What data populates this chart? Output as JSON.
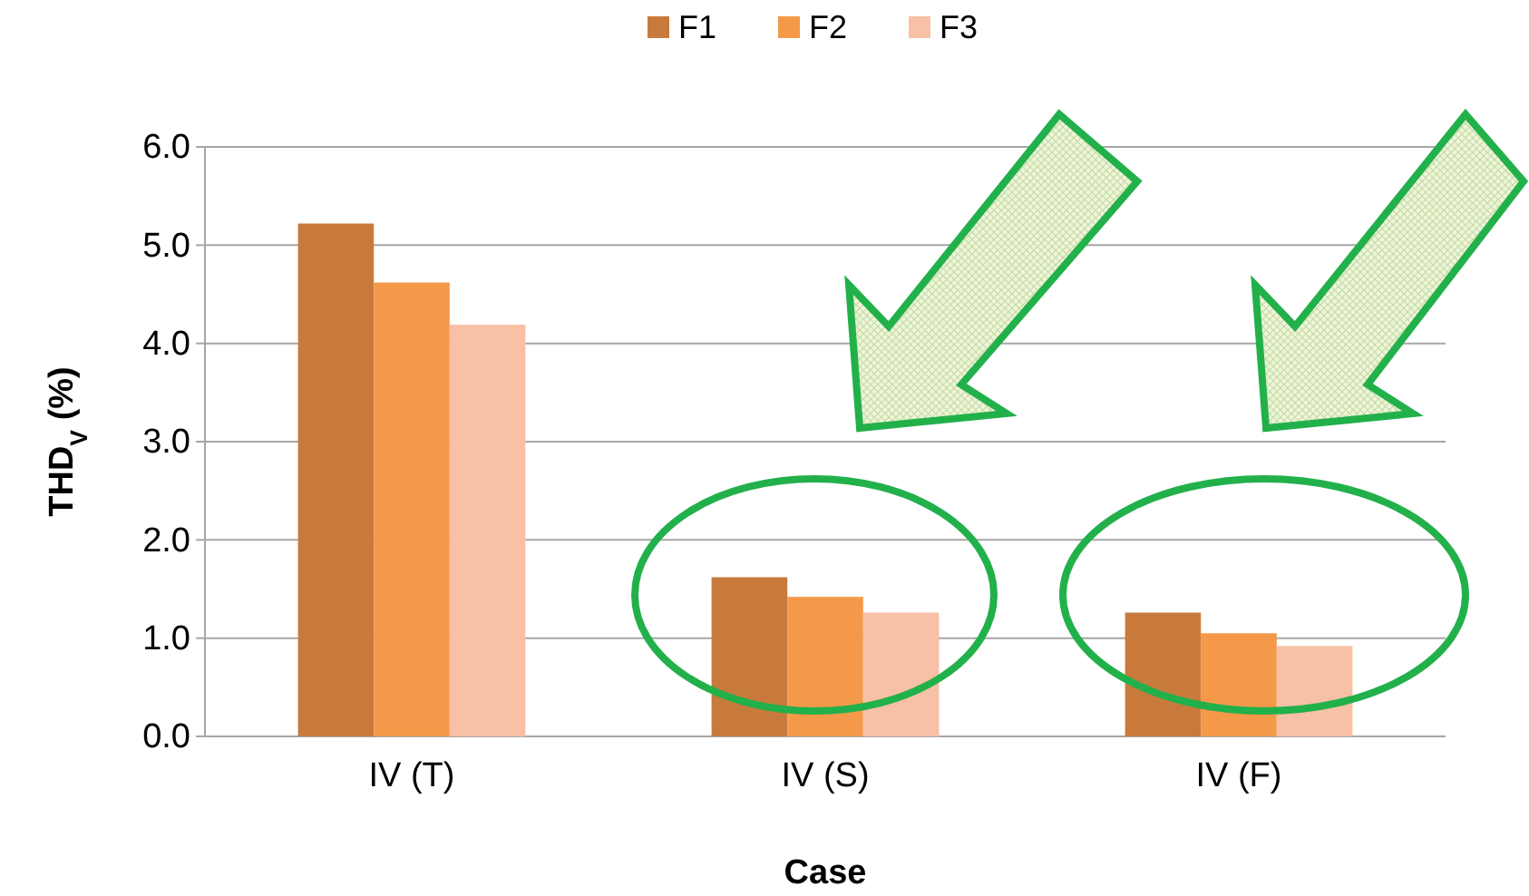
{
  "chart_data": {
    "type": "bar",
    "xlabel": "Case",
    "ylabel": "THD$_{V}$ (%)",
    "categories": [
      "IV (T)",
      "IV (S)",
      "IV (F)"
    ],
    "series": [
      {
        "name": "F1",
        "color": "#c87a3c",
        "values": [
          5.22,
          1.62,
          1.26
        ]
      },
      {
        "name": "F2",
        "color": "#f4994a",
        "values": [
          4.62,
          1.42,
          1.05
        ]
      },
      {
        "name": "F3",
        "color": "#f8c0a6",
        "values": [
          4.19,
          1.26,
          0.92
        ]
      }
    ],
    "ylim": [
      0,
      6
    ],
    "yticks": [
      {
        "value": 0,
        "label": "0.0"
      },
      {
        "value": 1,
        "label": "1.0"
      },
      {
        "value": 2,
        "label": "2.0"
      },
      {
        "value": 3,
        "label": "3.0"
      },
      {
        "value": 4,
        "label": "4.0"
      },
      {
        "value": 5,
        "label": "5.0"
      },
      {
        "value": 6,
        "label": "6.0"
      }
    ],
    "grid": "y",
    "legend": "top"
  }
}
